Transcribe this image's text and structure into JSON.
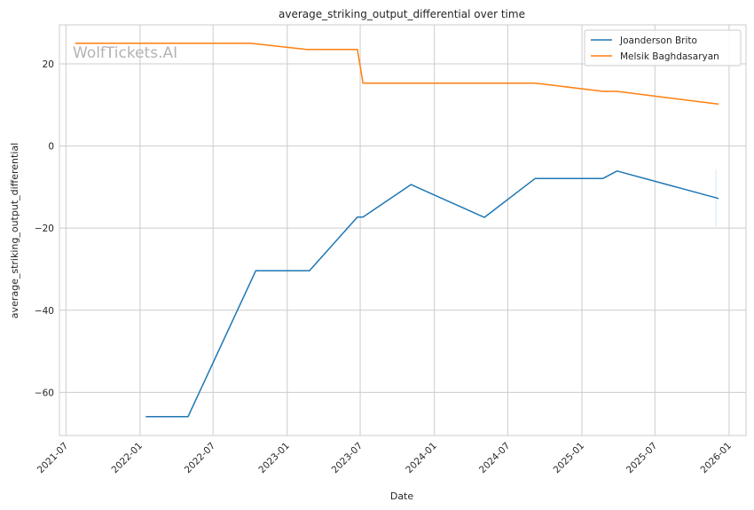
{
  "chart_data": {
    "type": "line",
    "title": "average_striking_output_differential over time",
    "xlabel": "Date",
    "ylabel": "average_striking_output_differential",
    "watermark": "WolfTickets.AI",
    "xlim": [
      "2021-06-15",
      "2026-02-12"
    ],
    "ylim": [
      -70.5,
      29.5
    ],
    "grid": true,
    "legend_position": "top-right",
    "x_ticks": [
      "2021-07",
      "2022-01",
      "2022-07",
      "2023-01",
      "2023-07",
      "2024-01",
      "2024-07",
      "2025-01",
      "2025-07",
      "2026-01"
    ],
    "y_ticks": [
      20,
      0,
      -20,
      -40,
      -60
    ],
    "y_tick_labels": [
      "20",
      "0",
      "−20",
      "−40",
      "−60"
    ],
    "series": [
      {
        "name": "Joanderson Brito",
        "color": "#1f77b4",
        "points": [
          [
            "2022-01-15",
            -65.9
          ],
          [
            "2022-04-30",
            -65.9
          ],
          [
            "2022-10-15",
            -30.4
          ],
          [
            "2023-02-25",
            -30.4
          ],
          [
            "2023-06-24",
            -17.3
          ],
          [
            "2023-07-08",
            -17.3
          ],
          [
            "2023-11-04",
            -9.4
          ],
          [
            "2024-05-04",
            -17.4
          ],
          [
            "2024-09-07",
            -7.9
          ],
          [
            "2025-02-22",
            -7.9
          ],
          [
            "2025-03-29",
            -6.1
          ],
          [
            "2025-12-06",
            -12.8
          ]
        ]
      },
      {
        "name": "Melsik Baghdasaryan",
        "color": "#ff7f0e",
        "points": [
          [
            "2021-07-24",
            25.0
          ],
          [
            "2022-10-01",
            25.0
          ],
          [
            "2023-02-18",
            23.5
          ],
          [
            "2023-06-24",
            23.5
          ],
          [
            "2023-07-08",
            15.3
          ],
          [
            "2024-09-07",
            15.3
          ],
          [
            "2025-02-22",
            13.3
          ],
          [
            "2025-03-29",
            13.3
          ],
          [
            "2025-12-06",
            10.2
          ]
        ]
      }
    ]
  }
}
